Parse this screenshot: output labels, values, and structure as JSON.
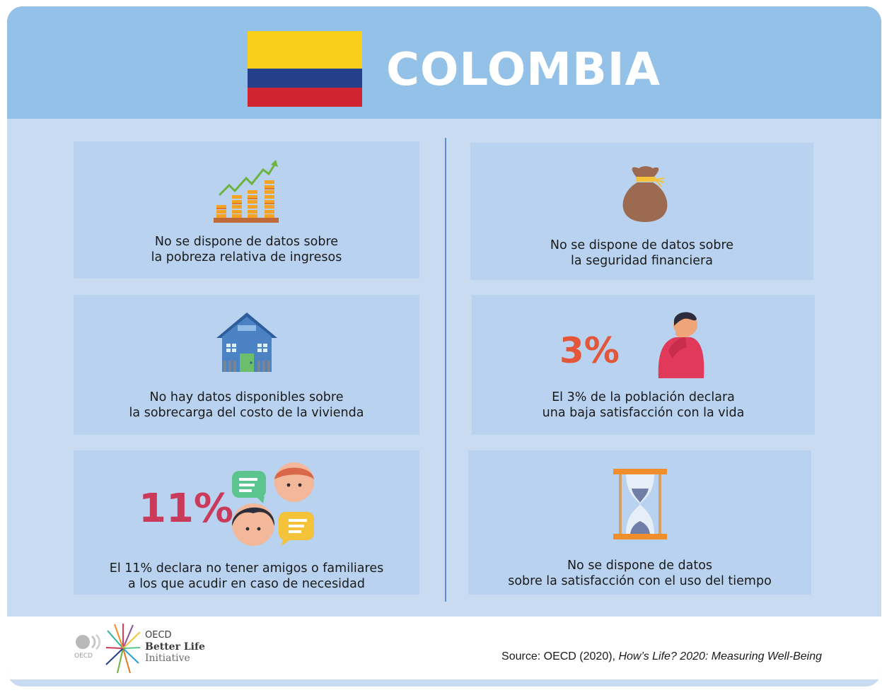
{
  "header": {
    "title": "COLOMBIA",
    "flag_colors": [
      "#f8cf1b",
      "#263f8a",
      "#d02430"
    ]
  },
  "panels": {
    "income_poverty": {
      "caption_line1": "No se dispone de datos sobre",
      "caption_line2": "la pobreza relativa de ingresos",
      "icon": "coin-stacks-growth-icon"
    },
    "financial_security": {
      "caption_line1": "No se dispone de datos sobre",
      "caption_line2": "la seguridad financiera",
      "icon": "money-bag-icon"
    },
    "housing_cost": {
      "caption_line1": "No hay datos disponibles sobre",
      "caption_line2": "la sobrecarga del costo de la vivienda",
      "icon": "house-icon"
    },
    "life_satisfaction": {
      "value": "3%",
      "value_color": "#e2573a",
      "caption_line1": "El 3% de la población declara",
      "caption_line2": "una baja satisfacción con la vida",
      "icon": "distressed-person-icon"
    },
    "social_support": {
      "value": "11%",
      "value_color": "#c93a5b",
      "caption_line1": "El 11% declara no tener amigos o familiares",
      "caption_line2": "a los que acudir en caso de necesidad",
      "icon": "people-chat-icon"
    },
    "time_satisfaction": {
      "caption_line1": "No se dispone de datos",
      "caption_line2": "sobre la satisfacción con el uso del tiempo",
      "icon": "hourglass-icon"
    }
  },
  "footer": {
    "oecd_small": "OECD",
    "logo_line1": "OECD",
    "logo_line2": "Better Life",
    "logo_line3": "Initiative",
    "source_prefix": "Source: OECD (2020), ",
    "source_title": "How’s Life? 2020: Measuring Well-Being"
  }
}
